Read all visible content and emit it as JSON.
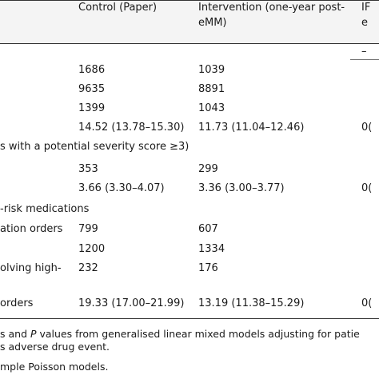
{
  "header": {
    "control": "Control (Paper)",
    "intervention_line1": "Intervention (one-year post-",
    "intervention_line2": "eMM)",
    "ir_line1": "IF",
    "ir_line2": "e"
  },
  "dash": "–",
  "rows": [
    {
      "label": "",
      "control": "1686",
      "intervention": "1039",
      "ir": ""
    },
    {
      "label": "",
      "control": "9635",
      "intervention": "8891",
      "ir": ""
    },
    {
      "label": "",
      "control": "1399",
      "intervention": "1043",
      "ir": ""
    },
    {
      "label": "",
      "control": "14.52 (13.78–15.30)",
      "intervention": "11.73 (11.04–12.46)",
      "ir": "0("
    },
    {
      "label": "s with a potential severity score ≥3)",
      "control": "",
      "intervention": "",
      "ir": ""
    },
    {
      "label": "",
      "control": "353",
      "intervention": "299",
      "ir": ""
    },
    {
      "label": "",
      "control": "3.66 (3.30–4.07)",
      "intervention": "3.36 (3.00–3.77)",
      "ir": "0("
    },
    {
      "label": "-risk medications",
      "control": "",
      "intervention": "",
      "ir": ""
    },
    {
      "label": "ation orders",
      "control": "799",
      "intervention": "607",
      "ir": ""
    },
    {
      "label": "",
      "control": "1200",
      "intervention": "1334",
      "ir": ""
    },
    {
      "label": "olving high-",
      "control": "232",
      "intervention": "176",
      "ir": ""
    },
    {
      "label": "orders",
      "control": "19.33 (17.00–21.99)",
      "intervention": "13.19 (11.38–15.29)",
      "ir": "0("
    }
  ],
  "footnotes": {
    "line1_a": "s and ",
    "line1_p": "P",
    "line1_b": " values from generalised linear mixed models adjusting for patie",
    "line2": "s adverse drug event.",
    "line3": "mple Poisson models."
  }
}
